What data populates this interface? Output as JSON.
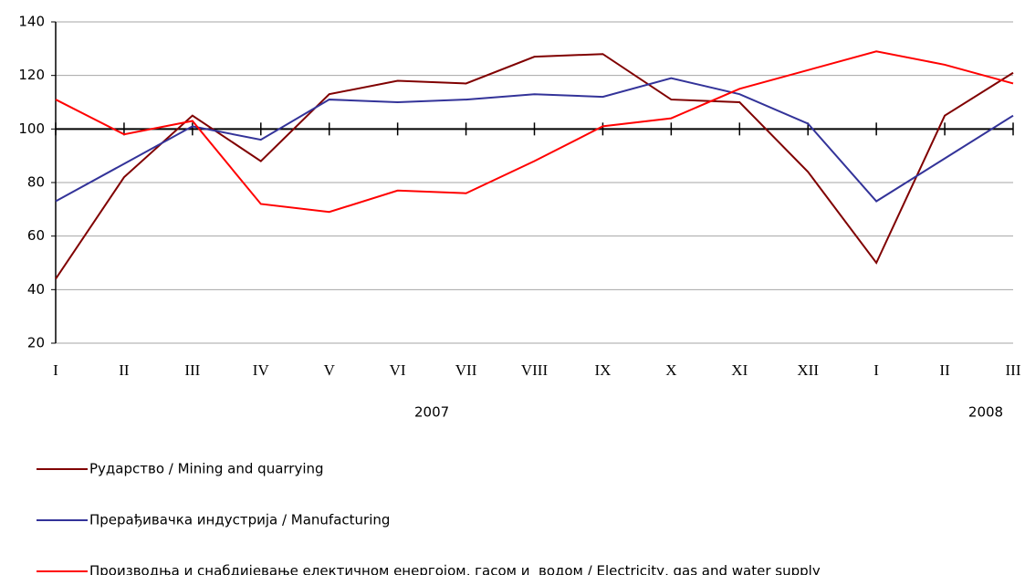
{
  "chart_data": {
    "type": "line",
    "categories": [
      "I",
      "II",
      "III",
      "IV",
      "V",
      "VI",
      "VII",
      "VIII",
      "IX",
      "X",
      "XI",
      "XII",
      "I",
      "II",
      "III"
    ],
    "year_labels": [
      "2007",
      "2008"
    ],
    "series": [
      {
        "name": "Рударство / Mining and quarrying",
        "color": "#800000",
        "values": [
          44,
          82,
          105,
          88,
          113,
          118,
          117,
          127,
          128,
          111,
          110,
          84,
          50,
          105,
          121
        ]
      },
      {
        "name": "Прерађивачка индустрија / Manufacturing",
        "color": "#333399",
        "values": [
          73,
          87,
          101,
          96,
          111,
          110,
          111,
          113,
          112,
          119,
          113,
          102,
          73,
          89,
          105
        ]
      },
      {
        "name": "Производња и снабдијевање електичном енергојом, гасом и  водом / Electricity, gas and water supply",
        "color": "#ff0000",
        "values": [
          111,
          98,
          103,
          72,
          69,
          77,
          76,
          88,
          101,
          104,
          115,
          122,
          129,
          124,
          117
        ]
      }
    ],
    "ylim": [
      20,
      140
    ],
    "yticks": [
      20,
      40,
      60,
      80,
      100,
      120,
      140
    ],
    "x_axis_crosses": 100,
    "grid": true
  }
}
